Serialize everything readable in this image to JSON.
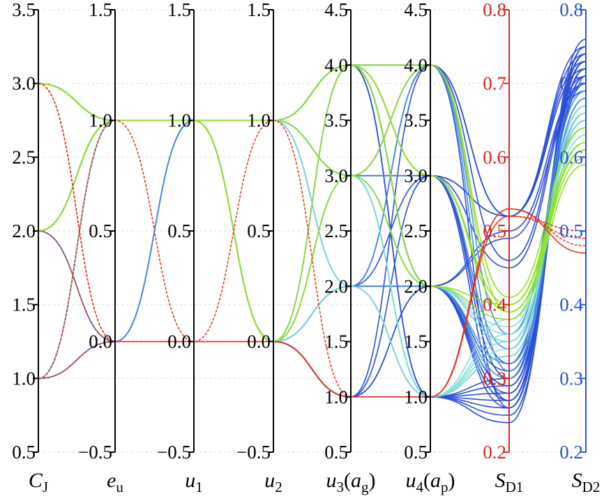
{
  "chart_data": {
    "type": "parallel-coordinates",
    "title": "",
    "axes": [
      {
        "id": "CJ",
        "label": "C",
        "label_sub": "J",
        "range": [
          0.5,
          3.5
        ],
        "ticks": [
          "0.5",
          "1.0",
          "1.5",
          "2.0",
          "2.5",
          "3.0",
          "3.5"
        ],
        "tick_values": [
          0.5,
          1.0,
          1.5,
          2.0,
          2.5,
          3.0,
          3.5
        ],
        "color": "#000000"
      },
      {
        "id": "eu",
        "label": "e",
        "label_sub": "u",
        "range": [
          -0.5,
          1.5
        ],
        "ticks": [
          "−0.5",
          "0.0",
          "0.5",
          "1.0",
          "1.5"
        ],
        "tick_values": [
          -0.5,
          0.0,
          0.5,
          1.0,
          1.5
        ],
        "color": "#000000"
      },
      {
        "id": "u1",
        "label": "u",
        "label_sub": "1",
        "range": [
          -0.5,
          1.5
        ],
        "ticks": [
          "−0.5",
          "0.0",
          "0.5",
          "1.0",
          "1.5"
        ],
        "tick_values": [
          -0.5,
          0.0,
          0.5,
          1.0,
          1.5
        ],
        "color": "#000000"
      },
      {
        "id": "u2",
        "label": "u",
        "label_sub": "2",
        "range": [
          -0.5,
          1.5
        ],
        "ticks": [
          "−0.5",
          "0.0",
          "0.5",
          "1.0",
          "1.5"
        ],
        "tick_values": [
          -0.5,
          0.0,
          0.5,
          1.0,
          1.5
        ],
        "color": "#000000"
      },
      {
        "id": "u3",
        "label": "u",
        "label_sub": "3",
        "label_paren": "a",
        "label_paren_sub": "g",
        "range": [
          0.5,
          4.5
        ],
        "ticks": [
          "0.5",
          "1.0",
          "1.5",
          "2.0",
          "2.5",
          "3.0",
          "3.5",
          "4.0",
          "4.5"
        ],
        "tick_values": [
          0.5,
          1.0,
          1.5,
          2.0,
          2.5,
          3.0,
          3.5,
          4.0,
          4.5
        ],
        "color": "#000000"
      },
      {
        "id": "u4",
        "label": "u",
        "label_sub": "4",
        "label_paren": "a",
        "label_paren_sub": "p",
        "range": [
          0.5,
          4.5
        ],
        "ticks": [
          "0.5",
          "1.0",
          "1.5",
          "2.0",
          "2.5",
          "3.0",
          "3.5",
          "4.0",
          "4.5"
        ],
        "tick_values": [
          0.5,
          1.0,
          1.5,
          2.0,
          2.5,
          3.0,
          3.5,
          4.0,
          4.5
        ],
        "color": "#000000"
      },
      {
        "id": "SD1",
        "label": "S",
        "label_sub": "D1",
        "range": [
          0.2,
          0.8
        ],
        "ticks": [
          "0.2",
          "0.3",
          "0.4",
          "0.5",
          "0.6",
          "0.7",
          "0.8"
        ],
        "tick_values": [
          0.2,
          0.3,
          0.4,
          0.5,
          0.6,
          0.7,
          0.8
        ],
        "color": "#d62718"
      },
      {
        "id": "SD2",
        "label": "S",
        "label_sub": "D2",
        "range": [
          0.2,
          0.8
        ],
        "ticks": [
          "0.2",
          "0.3",
          "0.4",
          "0.5",
          "0.6",
          "0.7",
          "0.8"
        ],
        "tick_values": [
          0.2,
          0.3,
          0.4,
          0.5,
          0.6,
          0.7,
          0.8
        ],
        "color": "#2a52d8"
      }
    ],
    "grid": true,
    "series": [
      {
        "color": "#2a4fd6",
        "dashed": false,
        "lines": [
          [
            3,
            1,
            1,
            1,
            4,
            4,
            0.52,
            0.75
          ],
          [
            3,
            1,
            1,
            1,
            4,
            3,
            0.52,
            0.74
          ],
          [
            3,
            1,
            1,
            1,
            3,
            4,
            0.52,
            0.73
          ],
          [
            3,
            1,
            1,
            1,
            3,
            3,
            0.52,
            0.72
          ],
          [
            2,
            1,
            1,
            1,
            4,
            2,
            0.5,
            0.7
          ],
          [
            2,
            1,
            1,
            1,
            3,
            2,
            0.49,
            0.69
          ],
          [
            2,
            1,
            1,
            0,
            2,
            4,
            0.46,
            0.71
          ],
          [
            2,
            1,
            1,
            0,
            2,
            3,
            0.45,
            0.7
          ],
          [
            3,
            1,
            1,
            0,
            1,
            2,
            0.28,
            0.74
          ],
          [
            3,
            1,
            1,
            0,
            1,
            3,
            0.27,
            0.73
          ],
          [
            2,
            1,
            1,
            0,
            1,
            4,
            0.26,
            0.72
          ],
          [
            1,
            1,
            1,
            0,
            1,
            1,
            0.25,
            0.71
          ],
          [
            2,
            1,
            1,
            1,
            4,
            1,
            0.24,
            0.75
          ],
          [
            1,
            1,
            1,
            1,
            3,
            1,
            0.3,
            0.74
          ],
          [
            1,
            1,
            1,
            0,
            2,
            2,
            0.31,
            0.7
          ],
          [
            3,
            1,
            1,
            0,
            2,
            2,
            0.29,
            0.72
          ],
          [
            3,
            1,
            1,
            1,
            2,
            1,
            0.28,
            0.73
          ],
          [
            2,
            1,
            1,
            0,
            1,
            2,
            0.27,
            0.71
          ],
          [
            1,
            1,
            1,
            1,
            4,
            2,
            0.26,
            0.75
          ],
          [
            3,
            1,
            1,
            1,
            3,
            1,
            0.27,
            0.74
          ],
          [
            2,
            1,
            1,
            0,
            2,
            1,
            0.29,
            0.7
          ],
          [
            1,
            1,
            1,
            0,
            3,
            3,
            0.32,
            0.73
          ],
          [
            3,
            1,
            1,
            1,
            4,
            1,
            0.26,
            0.76
          ],
          [
            2,
            1,
            1,
            0,
            4,
            3,
            0.3,
            0.74
          ]
        ]
      },
      {
        "color": "#4a8be0",
        "dashed": false,
        "lines": [
          [
            2,
            0,
            1,
            1,
            4,
            2,
            0.3,
            0.68
          ],
          [
            1,
            0,
            1,
            0,
            2,
            2,
            0.32,
            0.66
          ],
          [
            2,
            0,
            1,
            1,
            3,
            3,
            0.34,
            0.69
          ],
          [
            1,
            0,
            1,
            0,
            2,
            1,
            0.33,
            0.67
          ],
          [
            2,
            0,
            1,
            1,
            4,
            4,
            0.36,
            0.7
          ],
          [
            1,
            0,
            1,
            0,
            3,
            2,
            0.35,
            0.65
          ],
          [
            1,
            0,
            1,
            1,
            2,
            4,
            0.31,
            0.68
          ]
        ]
      },
      {
        "color": "#7fded8",
        "dashed": false,
        "lines": [
          [
            2,
            1,
            1,
            1,
            3,
            2,
            0.37,
            0.64
          ],
          [
            2,
            1,
            1,
            0,
            3,
            1,
            0.36,
            0.63
          ],
          [
            3,
            1,
            1,
            1,
            3,
            1,
            0.35,
            0.66
          ],
          [
            2,
            1,
            1,
            0,
            2,
            1,
            0.34,
            0.65
          ],
          [
            1,
            1,
            1,
            0,
            3,
            1,
            0.33,
            0.67
          ],
          [
            2,
            1,
            1,
            1,
            2,
            1,
            0.38,
            0.64
          ],
          [
            3,
            1,
            1,
            0,
            3,
            2,
            0.36,
            0.62
          ],
          [
            1,
            1,
            1,
            1,
            3,
            2,
            0.35,
            0.66
          ]
        ]
      },
      {
        "color": "#8ee21f",
        "dashed": false,
        "lines": [
          [
            3,
            1,
            1,
            1,
            4,
            4,
            0.41,
            0.64
          ],
          [
            2,
            1,
            1,
            1,
            4,
            3,
            0.4,
            0.61
          ],
          [
            3,
            1,
            1,
            1,
            3,
            4,
            0.39,
            0.6
          ],
          [
            2,
            1,
            1,
            0,
            4,
            2,
            0.38,
            0.59
          ],
          [
            2,
            1,
            1,
            0,
            3,
            2,
            0.4,
            0.62
          ],
          [
            3,
            1,
            1,
            1,
            4,
            3,
            0.39,
            0.61
          ]
        ]
      },
      {
        "color": "#e5311b",
        "dashed": true,
        "lines": [
          [
            3,
            0,
            0,
            0,
            1,
            1,
            0.53,
            0.47
          ],
          [
            3,
            0,
            0,
            0,
            1,
            1,
            0.53,
            0.48
          ],
          [
            2,
            0,
            0,
            1,
            1,
            1,
            0.52,
            0.5
          ],
          [
            1,
            0,
            0,
            0,
            1,
            1,
            0.53,
            0.47
          ],
          [
            1,
            1,
            0,
            0,
            1,
            1,
            0.52,
            0.49
          ]
        ]
      }
    ]
  }
}
